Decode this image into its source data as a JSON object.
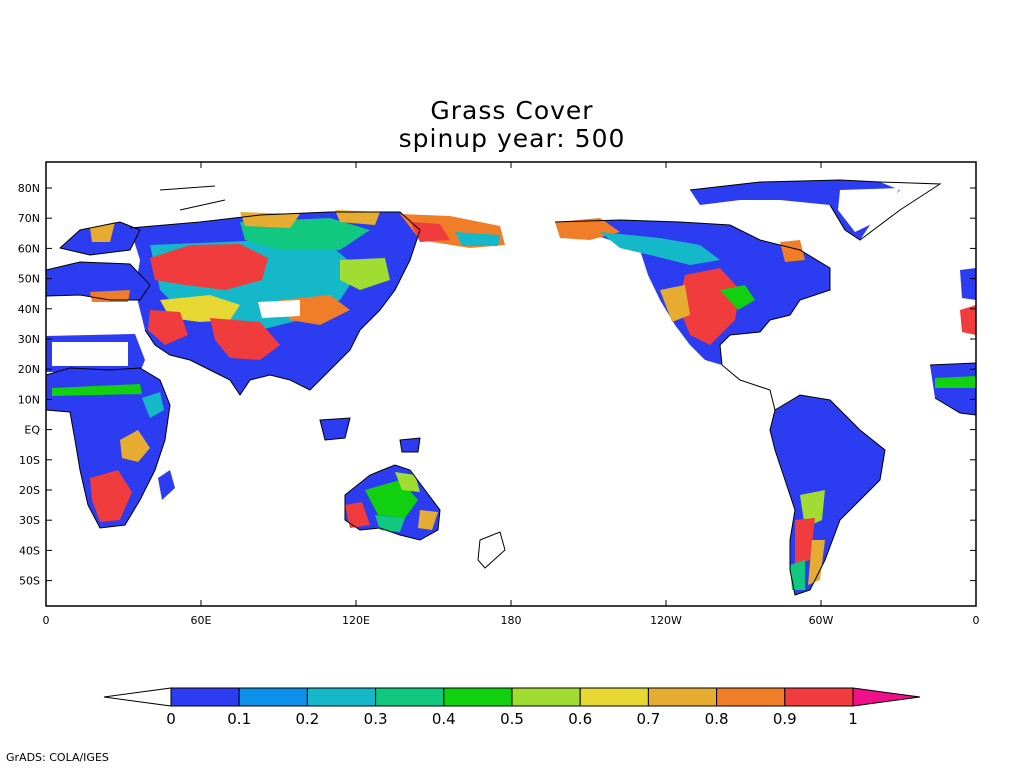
{
  "title": {
    "line1": "Grass Cover",
    "line2": "spinup year: 500"
  },
  "map": {
    "variable": "Grass Cover",
    "projection": "cylindrical lat-lon, centered 180",
    "lon_range": [
      0,
      360
    ],
    "lat_range": [
      -60,
      90
    ],
    "lat_ticks": [
      "80N",
      "70N",
      "60N",
      "50N",
      "40N",
      "30N",
      "20N",
      "10N",
      "EQ",
      "10S",
      "20S",
      "30S",
      "40S",
      "50S"
    ],
    "lon_ticks": [
      "0",
      "60E",
      "120E",
      "180",
      "120W",
      "60W",
      "0"
    ],
    "icons": [
      "coastline-outline",
      "shaded-contour-field"
    ]
  },
  "colorbar": {
    "labels": [
      "0",
      "0.1",
      "0.2",
      "0.3",
      "0.4",
      "0.5",
      "0.6",
      "0.7",
      "0.8",
      "0.9",
      "1"
    ],
    "below_color": "#ffffff",
    "above_color": "#f0108c",
    "bins": [
      {
        "range": "0-0.1",
        "color": "#2c3cf0"
      },
      {
        "range": "0.1-0.2",
        "color": "#0c90ea"
      },
      {
        "range": "0.2-0.3",
        "color": "#14b8c8"
      },
      {
        "range": "0.3-0.4",
        "color": "#10c880"
      },
      {
        "range": "0.4-0.5",
        "color": "#10d010"
      },
      {
        "range": "0.5-0.6",
        "color": "#a0dc32"
      },
      {
        "range": "0.6-0.7",
        "color": "#e6d732"
      },
      {
        "range": "0.7-0.8",
        "color": "#e6ac32"
      },
      {
        "range": "0.8-0.9",
        "color": "#f07e28"
      },
      {
        "range": "0.9-1",
        "color": "#f03c3c"
      }
    ]
  },
  "credit": "GrADS: COLA/IGES"
}
